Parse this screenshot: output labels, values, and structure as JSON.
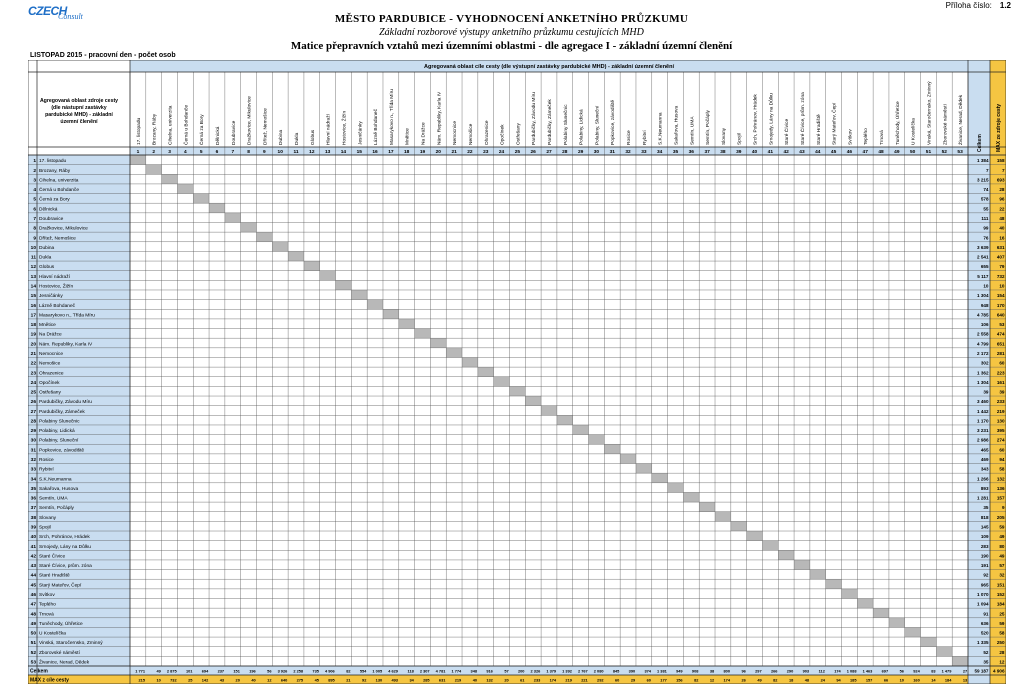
{
  "header": {
    "logo_main": "CZECH",
    "logo_sub": "Consult",
    "appendix_label": "Příloha číslo:",
    "appendix_number": "1.2",
    "title": "MĚSTO PARDUBICE - VYHODNOCENÍ ANKETNÍHO PRŮZKUMU",
    "subtitle": "Základní rozborové výstupy anketního průzkumu cestujících MHD",
    "matrix_title": "Matice přepravních vztahů mezi územními oblastmi - dle agregace I - základní územní členění",
    "period": "LISTOPAD 2015 - pracovní den - počet osob"
  },
  "table": {
    "corner_label": "Agregovaná oblast zdroje cesty (dle nástupní zastávky pardubické MHD) - základní územní členění",
    "dest_group_label": "Agregovaná oblast cíle cesty (dle výstupní zastávky pardubické MHD) - základní územní členění",
    "total_col_label": "Celkem",
    "max_col_label": "MAX ze zdroje cesty",
    "total_row_label": "Celkem",
    "max_row_label": "MAX z cíle cesty",
    "zones": [
      "17. listopadu",
      "Brozany, Ráby",
      "Cihelna, univerzita",
      "Černá u Bohdanče",
      "Černá za Bory",
      "Dělnická",
      "Doubravice",
      "Dražkovice, Mikulovice",
      "Dřítež, Nemošice",
      "Dubina",
      "Dukla",
      "Globus",
      "Hlavní nádraží",
      "Hostovice, Žižín",
      "Jesničánky",
      "Lázně Bohdaneč",
      "Masarykovo n., Třída Míru",
      "Mnětice",
      "Na Drážce",
      "Nám. Republiky, Karla IV",
      "Nemocnice",
      "Nemošice",
      "Ohrazenice",
      "Opočínek",
      "Ostřešany",
      "Pardubičky, Závodu Míru",
      "Pardubičky, Zámeček",
      "Polabiny Slunečnic",
      "Polabiny, Lidická",
      "Polabiny, Sluneční",
      "Popkovice, závodiště",
      "Rosice",
      "Rybitví",
      "S.K.Neumanna",
      "Sakařova, Husova",
      "Semtín, UMA",
      "Semtín, Počáply",
      "Slovany",
      "Spojil",
      "Srch, Pohránov, Hrádek",
      "Srnojedy, Lány na Důlku",
      "Staré Čívice",
      "Staré Čívice, prům. zóna",
      "Staré Hradiště",
      "Starý Mateřov, Čepí",
      "Svítkov",
      "Teplého",
      "Trnová",
      "Tuněchody, Úhřetice",
      "U Kostelíčka",
      "Vinská, Staročernsko, Zminný",
      "Zborovské náměstí",
      "Živanice, Nerad, Dědek"
    ],
    "row_totals": [
      "1 384",
      "7",
      "3 215",
      "74",
      "578",
      "55",
      "111",
      "99",
      "76",
      "3 639",
      "2 541",
      "655",
      "5 117",
      "10",
      "1 304",
      "948",
      "4 785",
      "106",
      "2 558",
      "4 799",
      "2 172",
      "302",
      "1 362",
      "1 304",
      "39",
      "3 460",
      "1 442",
      "1 170",
      "3 231",
      "2 986",
      "465",
      "469",
      "343",
      "1 266",
      "893",
      "1 281",
      "35",
      "818",
      "145",
      "109",
      "283",
      "190",
      "191",
      "92",
      "965",
      "1 070",
      "1 094",
      "91",
      "636",
      "520",
      "1 335",
      "52",
      "35"
    ],
    "row_max": [
      "158",
      "7",
      "693",
      "28",
      "96",
      "22",
      "48",
      "40",
      "16",
      "631",
      "407",
      "79",
      "732",
      "10",
      "154",
      "170",
      "640",
      "53",
      "474",
      "651",
      "281",
      "60",
      "223",
      "161",
      "39",
      "233",
      "219",
      "130",
      "395",
      "274",
      "60",
      "94",
      "58",
      "132",
      "136",
      "157",
      "9",
      "205",
      "59",
      "49",
      "80",
      "49",
      "57",
      "32",
      "151",
      "152",
      "184",
      "25",
      "59",
      "58",
      "250",
      "28",
      "12"
    ],
    "col_totals": [
      "1 771",
      "49",
      "2 875",
      "101",
      "694",
      "237",
      "151",
      "196",
      "56",
      "3 926",
      "2 258",
      "735",
      "4 906",
      "82",
      "554",
      "1 005",
      "4 629",
      "118",
      "2 307",
      "4 781",
      "1 774",
      "348",
      "916",
      "57",
      "200",
      "2 326",
      "1 379",
      "1 392",
      "2 767",
      "2 080",
      "845",
      "390",
      "374",
      "1 381",
      "949",
      "908",
      "38",
      "800",
      "96",
      "297",
      "266",
      "290",
      "903",
      "112",
      "174",
      "1 088",
      "1 463",
      "697",
      "56",
      "924",
      "83",
      "1 479",
      "27"
    ],
    "col_max": [
      "215",
      "10",
      "732",
      "25",
      "142",
      "43",
      "20",
      "40",
      "12",
      "640",
      "275",
      "45",
      "895",
      "21",
      "92",
      "130",
      "493",
      "34",
      "285",
      "631",
      "219",
      "40",
      "132",
      "20",
      "61",
      "233",
      "174",
      "219",
      "221",
      "292",
      "60",
      "29",
      "60",
      "177",
      "156",
      "82",
      "12",
      "174",
      "26",
      "49",
      "82",
      "18",
      "48",
      "24",
      "94",
      "185",
      "157",
      "66",
      "10",
      "160",
      "14",
      "184",
      "13"
    ],
    "grand_total": "59 187",
    "grand_max": "4 906"
  }
}
